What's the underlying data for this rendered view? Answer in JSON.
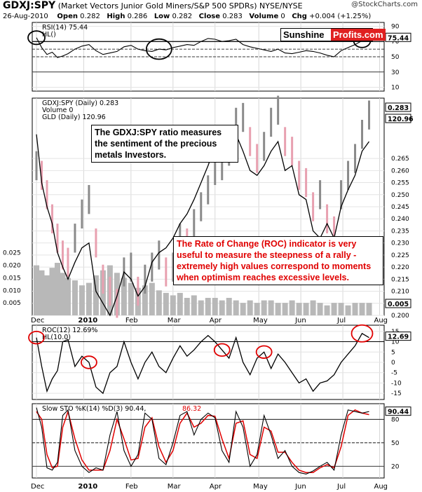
{
  "header": {
    "symbol": "GDXJ:SPY",
    "description": "(Market Vectors Junior Gold Miners/S&P 500 SPDRs)",
    "exchange": "NYSE/NYSE",
    "date": "26-Aug-2010",
    "open_label": "Open",
    "open": "0.282",
    "high_label": "High",
    "high": "0.286",
    "low_label": "Low",
    "low": "0.282",
    "close_label": "Close",
    "close": "0.283",
    "volume_label": "Volume",
    "volume": "0",
    "chg_label": "Chg",
    "chg": "+0.004 (+1.25%)",
    "logo": "@StockCharts.com"
  },
  "brand": {
    "part1": "Sunshine",
    "part2": "Profits.com",
    "accent": "#e02020"
  },
  "annotations": {
    "ratio_note": "The GDXJ:SPY ratio measures the sentiment of the precious metals Investors.",
    "roc_note": "The Rate of Change (ROC) indicator is very useful to measure the steepness of a rally - extremely high values correspond to moments when optimism reaches excessive levels."
  },
  "chart_data": [
    {
      "type": "line",
      "panel": "rsi",
      "legend": [
        "RSI(14) 75.44",
        "HL()"
      ],
      "last_value": "75.44",
      "ylim": [
        5,
        95
      ],
      "yticks": [
        "90",
        "70",
        "50",
        "30",
        "10"
      ],
      "reference_lines": [
        70,
        60,
        50,
        30
      ],
      "x": [
        0,
        3,
        6,
        9,
        12,
        15,
        18,
        22,
        26,
        30,
        34,
        38,
        42,
        46,
        50,
        54,
        58,
        62,
        66,
        70,
        74,
        78,
        82,
        86,
        90,
        94,
        98,
        102,
        106,
        110,
        114,
        118,
        122,
        126,
        130,
        134,
        138,
        142,
        146,
        150,
        154,
        158,
        162,
        166,
        170,
        174,
        178,
        182,
        186,
        190
      ],
      "values": [
        75,
        62,
        53,
        56,
        49,
        51,
        54,
        60,
        64,
        66,
        58,
        53,
        55,
        57,
        63,
        65,
        60,
        58,
        57,
        60,
        59,
        62,
        64,
        66,
        65,
        70,
        74,
        73,
        70,
        71,
        73,
        66,
        63,
        61,
        59,
        57,
        60,
        55,
        54,
        56,
        58,
        57,
        55,
        52,
        50,
        58,
        62,
        66,
        71,
        75
      ],
      "highlighted_x": [
        0,
        70,
        186
      ]
    },
    {
      "type": "bar",
      "panel": "price",
      "legend": [
        "GDXJ:SPY (Daily) 0.283",
        "Volume 0",
        "GLD (Daily) 120.96"
      ],
      "series": [
        {
          "name": "GDXJ:SPY",
          "style": "bars",
          "color": "#909090",
          "down_color": "#e8a0b0"
        },
        {
          "name": "GLD",
          "style": "line",
          "color": "#000000"
        }
      ],
      "ylim": [
        0.2,
        0.29
      ],
      "yticks": [
        "0.265",
        "0.260",
        "0.255",
        "0.250",
        "0.245",
        "0.240",
        "0.235",
        "0.230",
        "0.225",
        "0.220",
        "0.215",
        "0.210",
        "0.205",
        "0.200"
      ],
      "last_labels": [
        "0.283",
        "120.96"
      ],
      "volume_yticks": [
        "0.025",
        "0.020",
        "0.015",
        "0.010",
        "0.005"
      ],
      "volume_last": "0.005",
      "x": [
        0,
        3,
        6,
        9,
        12,
        15,
        18,
        22,
        26,
        30,
        34,
        38,
        42,
        46,
        50,
        54,
        58,
        62,
        66,
        70,
        74,
        78,
        82,
        86,
        90,
        94,
        98,
        102,
        106,
        110,
        114,
        118,
        122,
        126,
        130,
        134,
        138,
        142,
        146,
        150,
        154,
        158,
        162,
        166,
        170,
        174,
        178,
        182,
        186,
        190
      ],
      "ratio_values": [
        0.262,
        0.258,
        0.25,
        0.24,
        0.232,
        0.225,
        0.222,
        0.232,
        0.242,
        0.248,
        0.23,
        0.215,
        0.21,
        0.205,
        0.218,
        0.22,
        0.21,
        0.215,
        0.22,
        0.225,
        0.218,
        0.22,
        0.232,
        0.23,
        0.238,
        0.245,
        0.252,
        0.26,
        0.262,
        0.268,
        0.28,
        0.282,
        0.272,
        0.265,
        0.27,
        0.28,
        0.285,
        0.272,
        0.268,
        0.258,
        0.255,
        0.245,
        0.25,
        0.24,
        0.235,
        0.25,
        0.258,
        0.265,
        0.275,
        0.283
      ],
      "gld_values": [
        0.275,
        0.255,
        0.245,
        0.238,
        0.226,
        0.22,
        0.215,
        0.222,
        0.228,
        0.23,
        0.21,
        0.205,
        0.2,
        0.208,
        0.218,
        0.215,
        0.208,
        0.212,
        0.222,
        0.226,
        0.228,
        0.232,
        0.238,
        0.242,
        0.248,
        0.255,
        0.262,
        0.27,
        0.268,
        0.265,
        0.275,
        0.268,
        0.26,
        0.258,
        0.262,
        0.268,
        0.272,
        0.26,
        0.262,
        0.25,
        0.248,
        0.235,
        0.232,
        0.238,
        0.232,
        0.245,
        0.252,
        0.258,
        0.268,
        0.272
      ],
      "volume_values": [
        0.02,
        0.018,
        0.016,
        0.019,
        0.021,
        0.017,
        0.015,
        0.014,
        0.012,
        0.013,
        0.016,
        0.018,
        0.02,
        0.017,
        0.015,
        0.013,
        0.011,
        0.012,
        0.013,
        0.01,
        0.009,
        0.008,
        0.009,
        0.007,
        0.008,
        0.006,
        0.007,
        0.007,
        0.006,
        0.007,
        0.006,
        0.005,
        0.006,
        0.005,
        0.006,
        0.006,
        0.005,
        0.005,
        0.006,
        0.005,
        0.005,
        0.006,
        0.005,
        0.004,
        0.005,
        0.005,
        0.004,
        0.005,
        0.005,
        0.005
      ]
    },
    {
      "type": "line",
      "panel": "roc",
      "legend": [
        "ROC(12) 12.69%",
        "HL(10.0)"
      ],
      "last_value": "12.69",
      "ylim": [
        -18,
        18
      ],
      "yticks": [
        "15",
        "10",
        "5",
        "0",
        "-5",
        "-10",
        "-15"
      ],
      "reference_lines": [
        10
      ],
      "x": [
        0,
        3,
        6,
        9,
        12,
        15,
        18,
        22,
        26,
        30,
        34,
        38,
        42,
        46,
        50,
        54,
        58,
        62,
        66,
        70,
        74,
        78,
        82,
        86,
        90,
        94,
        98,
        102,
        106,
        110,
        114,
        118,
        122,
        126,
        130,
        134,
        138,
        142,
        146,
        150,
        154,
        158,
        162,
        166,
        170,
        174,
        178,
        182,
        186,
        190
      ],
      "values": [
        12,
        -2,
        -14,
        -8,
        -4,
        10,
        11,
        -2,
        3,
        0,
        -12,
        -15,
        -5,
        -2,
        10,
        0,
        -8,
        0,
        5,
        -2,
        -5,
        2,
        8,
        3,
        6,
        10,
        13,
        10,
        6,
        2,
        12,
        0,
        -6,
        2,
        5,
        -3,
        4,
        0,
        -5,
        -10,
        -8,
        -14,
        -10,
        -9,
        -6,
        0,
        4,
        8,
        14,
        12
      ],
      "highlighted_x": [
        0,
        30,
        106,
        130,
        186
      ]
    },
    {
      "type": "line",
      "panel": "stochastic",
      "legend": [
        "Slow STO %K(14) %D(3) 90.44,",
        "86.32"
      ],
      "last_labels": [
        "90.44"
      ],
      "ylim": [
        5,
        100
      ],
      "yticks": [
        "80",
        "50",
        "20"
      ],
      "reference_lines": [
        80,
        50,
        20
      ],
      "series": [
        {
          "name": "%K",
          "color": "#000000"
        },
        {
          "name": "%D",
          "color": "#e00000"
        }
      ],
      "x": [
        0,
        3,
        6,
        9,
        12,
        15,
        18,
        22,
        26,
        30,
        34,
        38,
        42,
        46,
        50,
        54,
        58,
        62,
        66,
        70,
        74,
        78,
        82,
        86,
        90,
        94,
        98,
        102,
        106,
        110,
        114,
        118,
        122,
        126,
        130,
        134,
        138,
        142,
        146,
        150,
        154,
        158,
        162,
        166,
        170,
        174,
        178,
        182,
        186,
        190
      ],
      "k_values": [
        95,
        70,
        18,
        15,
        25,
        85,
        92,
        40,
        20,
        12,
        18,
        15,
        60,
        90,
        40,
        20,
        35,
        88,
        80,
        30,
        22,
        50,
        85,
        90,
        60,
        80,
        88,
        82,
        40,
        25,
        90,
        70,
        20,
        35,
        85,
        60,
        30,
        40,
        20,
        12,
        10,
        14,
        20,
        25,
        15,
        60,
        92,
        90,
        88,
        90
      ],
      "d_values": [
        90,
        80,
        35,
        18,
        20,
        70,
        90,
        55,
        28,
        15,
        15,
        15,
        40,
        80,
        55,
        28,
        30,
        70,
        82,
        45,
        25,
        40,
        75,
        88,
        70,
        75,
        85,
        84,
        55,
        30,
        75,
        78,
        35,
        30,
        70,
        65,
        38,
        38,
        25,
        15,
        12,
        12,
        18,
        22,
        18,
        45,
        85,
        92,
        88,
        86
      ]
    }
  ],
  "axis": {
    "months": [
      "Dec",
      "2010",
      "Feb",
      "Mar",
      "Apr",
      "May",
      "Jun",
      "Jul",
      "Aug"
    ],
    "month_positions": [
      0,
      27,
      54,
      78,
      102,
      127,
      151,
      175,
      196
    ]
  }
}
